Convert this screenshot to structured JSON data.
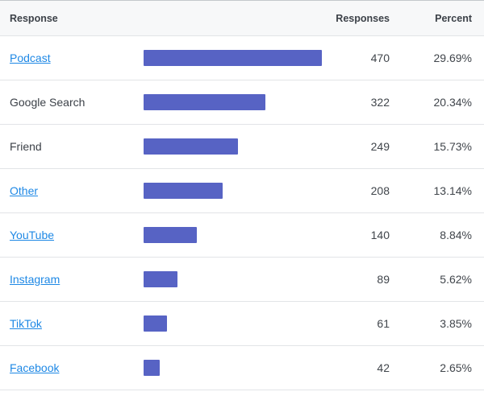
{
  "table": {
    "headers": {
      "response": "Response",
      "responses": "Responses",
      "percent": "Percent"
    },
    "rows": [
      {
        "label": "Podcast",
        "is_link": true,
        "responses": "470",
        "percent": "29.69%",
        "value": 470
      },
      {
        "label": "Google Search",
        "is_link": false,
        "responses": "322",
        "percent": "20.34%",
        "value": 322
      },
      {
        "label": "Friend",
        "is_link": false,
        "responses": "249",
        "percent": "15.73%",
        "value": 249
      },
      {
        "label": "Other",
        "is_link": true,
        "responses": "208",
        "percent": "13.14%",
        "value": 208
      },
      {
        "label": "YouTube",
        "is_link": true,
        "responses": "140",
        "percent": "8.84%",
        "value": 140
      },
      {
        "label": "Instagram",
        "is_link": true,
        "responses": "89",
        "percent": "5.62%",
        "value": 89
      },
      {
        "label": "TikTok",
        "is_link": true,
        "responses": "61",
        "percent": "3.85%",
        "value": 61
      },
      {
        "label": "Facebook",
        "is_link": true,
        "responses": "42",
        "percent": "2.65%",
        "value": 42
      }
    ]
  },
  "chart_data": {
    "type": "bar",
    "orientation": "horizontal",
    "title": "",
    "categories": [
      "Podcast",
      "Google Search",
      "Friend",
      "Other",
      "YouTube",
      "Instagram",
      "TikTok",
      "Facebook"
    ],
    "values": [
      470,
      322,
      249,
      208,
      140,
      89,
      61,
      42
    ],
    "percents": [
      29.69,
      20.34,
      15.73,
      13.14,
      8.84,
      5.62,
      3.85,
      2.65
    ],
    "xlabel": "Responses",
    "ylabel": "Response",
    "max_value": 470,
    "grid": false,
    "legend": false
  },
  "colors": {
    "bar": "#5763c4",
    "link": "#1e88e5",
    "text": "#3c4148",
    "header_bg": "#f7f8f9"
  }
}
